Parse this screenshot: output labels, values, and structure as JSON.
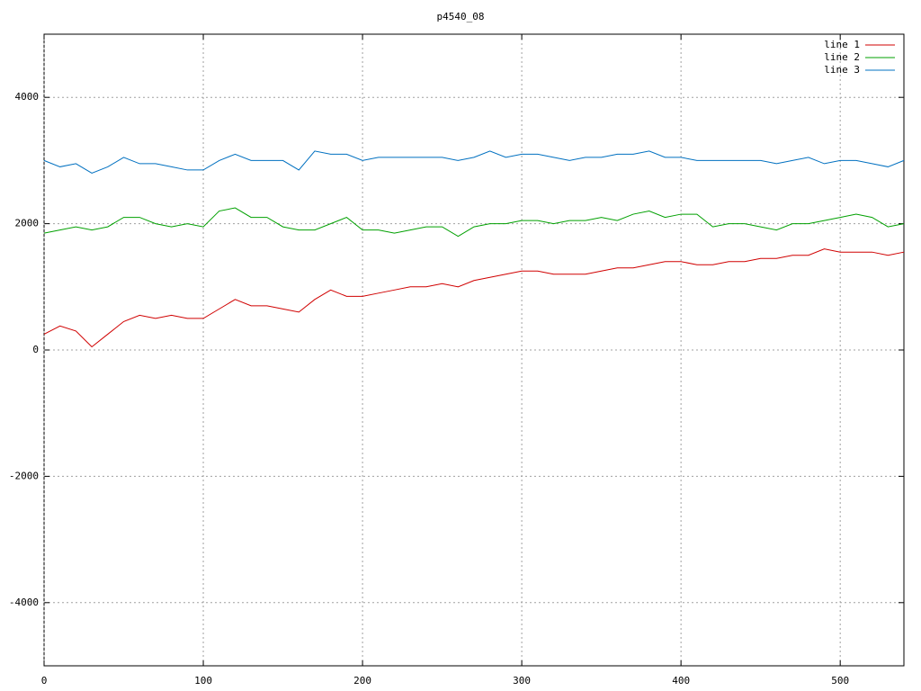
{
  "chart_data": {
    "type": "line",
    "title": "p4540_08",
    "x": [
      0,
      10,
      20,
      30,
      40,
      50,
      60,
      70,
      80,
      90,
      100,
      110,
      120,
      130,
      140,
      150,
      160,
      170,
      180,
      190,
      200,
      210,
      220,
      230,
      240,
      250,
      260,
      270,
      280,
      290,
      300,
      310,
      320,
      330,
      340,
      350,
      360,
      370,
      380,
      390,
      400,
      410,
      420,
      430,
      440,
      450,
      460,
      470,
      480,
      490,
      500,
      510,
      520,
      530,
      540
    ],
    "series": [
      {
        "name": "line 1",
        "color": "#d00000",
        "values": [
          250,
          380,
          300,
          50,
          250,
          450,
          550,
          500,
          550,
          500,
          500,
          650,
          800,
          700,
          700,
          650,
          600,
          800,
          950,
          850,
          850,
          900,
          950,
          1000,
          1000,
          1050,
          1000,
          1100,
          1150,
          1200,
          1250,
          1250,
          1200,
          1200,
          1200,
          1250,
          1300,
          1300,
          1350,
          1400,
          1400,
          1350,
          1350,
          1400,
          1400,
          1450,
          1450,
          1500,
          1500,
          1600,
          1550,
          1550,
          1550,
          1500,
          1550
        ]
      },
      {
        "name": "line 2",
        "color": "#00a000",
        "values": [
          1850,
          1900,
          1950,
          1900,
          1950,
          2100,
          2100,
          2000,
          1950,
          2000,
          1950,
          2200,
          2250,
          2100,
          2100,
          1950,
          1900,
          1900,
          2000,
          2100,
          1900,
          1900,
          1850,
          1900,
          1950,
          1950,
          1800,
          1950,
          2000,
          2000,
          2050,
          2050,
          2000,
          2050,
          2050,
          2100,
          2050,
          2150,
          2200,
          2100,
          2150,
          2150,
          1950,
          2000,
          2000,
          1950,
          1900,
          2000,
          2000,
          2050,
          2100,
          2150,
          2100,
          1950,
          2000
        ]
      },
      {
        "name": "line 3",
        "color": "#0070c0",
        "values": [
          3000,
          2900,
          2950,
          2800,
          2900,
          3050,
          2950,
          2950,
          2900,
          2850,
          2850,
          3000,
          3100,
          3000,
          3000,
          3000,
          2850,
          3150,
          3100,
          3100,
          3000,
          3050,
          3050,
          3050,
          3050,
          3050,
          3000,
          3050,
          3150,
          3050,
          3100,
          3100,
          3050,
          3000,
          3050,
          3050,
          3100,
          3100,
          3150,
          3050,
          3050,
          3000,
          3000,
          3000,
          3000,
          3000,
          2950,
          3000,
          3050,
          2950,
          3000,
          3000,
          2950,
          2900,
          3000
        ]
      }
    ],
    "xlim": [
      0,
      540
    ],
    "xticks": [
      0,
      100,
      200,
      300,
      400,
      500
    ],
    "ylim": [
      -5000,
      5000
    ],
    "yticks": [
      -4000,
      -2000,
      0,
      2000,
      4000
    ],
    "grid": true,
    "legend": "top-right"
  }
}
